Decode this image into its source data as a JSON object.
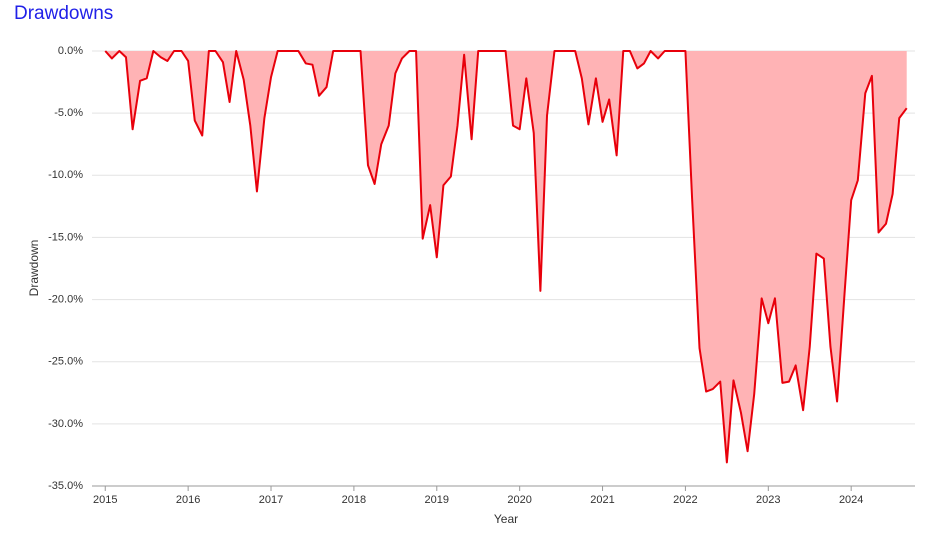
{
  "chart_data": {
    "type": "area",
    "title": "Drawdowns",
    "xlabel": "Year",
    "ylabel": "Drawdown",
    "line_color": "#e8000b",
    "fill_color": "#ffb3b5",
    "grid": true,
    "x": [
      2015,
      2015.08,
      2015.17,
      2015.25,
      2015.33,
      2015.42,
      2015.5,
      2015.58,
      2015.67,
      2015.75,
      2015.83,
      2015.92,
      2016,
      2016.08,
      2016.17,
      2016.25,
      2016.33,
      2016.42,
      2016.5,
      2016.58,
      2016.67,
      2016.75,
      2016.83,
      2016.92,
      2017,
      2017.08,
      2017.17,
      2017.25,
      2017.33,
      2017.42,
      2017.5,
      2017.58,
      2017.67,
      2017.75,
      2017.83,
      2017.92,
      2018,
      2018.08,
      2018.17,
      2018.25,
      2018.33,
      2018.42,
      2018.5,
      2018.58,
      2018.67,
      2018.75,
      2018.83,
      2018.92,
      2019,
      2019.08,
      2019.17,
      2019.25,
      2019.33,
      2019.42,
      2019.5,
      2019.58,
      2019.67,
      2019.75,
      2019.83,
      2019.92,
      2020,
      2020.08,
      2020.17,
      2020.25,
      2020.33,
      2020.42,
      2020.5,
      2020.58,
      2020.67,
      2020.75,
      2020.83,
      2020.92,
      2021,
      2021.08,
      2021.17,
      2021.25,
      2021.33,
      2021.42,
      2021.5,
      2021.58,
      2021.67,
      2021.75,
      2021.83,
      2021.92,
      2022,
      2022.08,
      2022.17,
      2022.25,
      2022.33,
      2022.42,
      2022.5,
      2022.58,
      2022.67,
      2022.75,
      2022.83,
      2022.92,
      2023,
      2023.08,
      2023.17,
      2023.25,
      2023.33,
      2023.42,
      2023.5,
      2023.58,
      2023.67,
      2023.75,
      2023.83,
      2023.92,
      2024,
      2024.08,
      2024.17,
      2024.25,
      2024.33,
      2024.42,
      2024.5,
      2024.58,
      2024.67
    ],
    "values": [
      0,
      -0.6,
      0,
      -0.5,
      -6.3,
      -2.4,
      -2.2,
      0,
      -0.5,
      -0.8,
      0,
      0,
      -0.8,
      -5.6,
      -6.8,
      0,
      0,
      -0.9,
      -4.1,
      0,
      -2.3,
      -6,
      -11.3,
      -5.4,
      -2.1,
      0,
      0,
      0,
      0,
      -1.0,
      -1.1,
      -3.6,
      -2.9,
      0,
      0,
      0,
      0,
      0,
      -9.2,
      -10.7,
      -7.5,
      -6.0,
      -1.8,
      -0.6,
      0,
      0,
      -15.1,
      -12.4,
      -16.6,
      -10.8,
      -10.1,
      -6.0,
      -0.3,
      -7.1,
      0,
      0,
      0,
      0,
      0,
      -6.0,
      -6.3,
      -2.2,
      -6.6,
      -19.3,
      -5.2,
      0,
      0,
      0,
      0,
      -2.2,
      -5.9,
      -2.2,
      -5.7,
      -3.9,
      -8.4,
      0,
      0,
      -1.4,
      -1.0,
      0,
      -0.6,
      0,
      0,
      0,
      0,
      -11.8,
      -23.9,
      -27.4,
      -27.2,
      -26.6,
      -33.1,
      -26.5,
      -29.1,
      -32.2,
      -27.6,
      -19.9,
      -21.9,
      -19.9,
      -26.7,
      -26.6,
      -25.3,
      -28.9,
      -23.8,
      -16.3,
      -16.7,
      -23.8,
      -28.2,
      -19.5,
      -12.0,
      -10.4,
      -3.4,
      -2.0,
      -14.6,
      -13.9,
      -11.5,
      -5.4,
      -4.6
    ],
    "xlim": [
      2014.84,
      2024.77
    ],
    "xticks": [
      2015,
      2016,
      2017,
      2018,
      2019,
      2020,
      2021,
      2022,
      2023,
      2024
    ],
    "ylim": [
      -35,
      0
    ],
    "yticks": [
      {
        "value": 0,
        "label": "0.0%"
      },
      {
        "value": -5,
        "label": "-5.0%"
      },
      {
        "value": -10,
        "label": "-10.0%"
      },
      {
        "value": -15,
        "label": "-15.0%"
      },
      {
        "value": -20,
        "label": "-20.0%"
      },
      {
        "value": -25,
        "label": "-25.0%"
      },
      {
        "value": -30,
        "label": "-30.0%"
      },
      {
        "value": -35,
        "label": "-35.0%"
      }
    ]
  }
}
